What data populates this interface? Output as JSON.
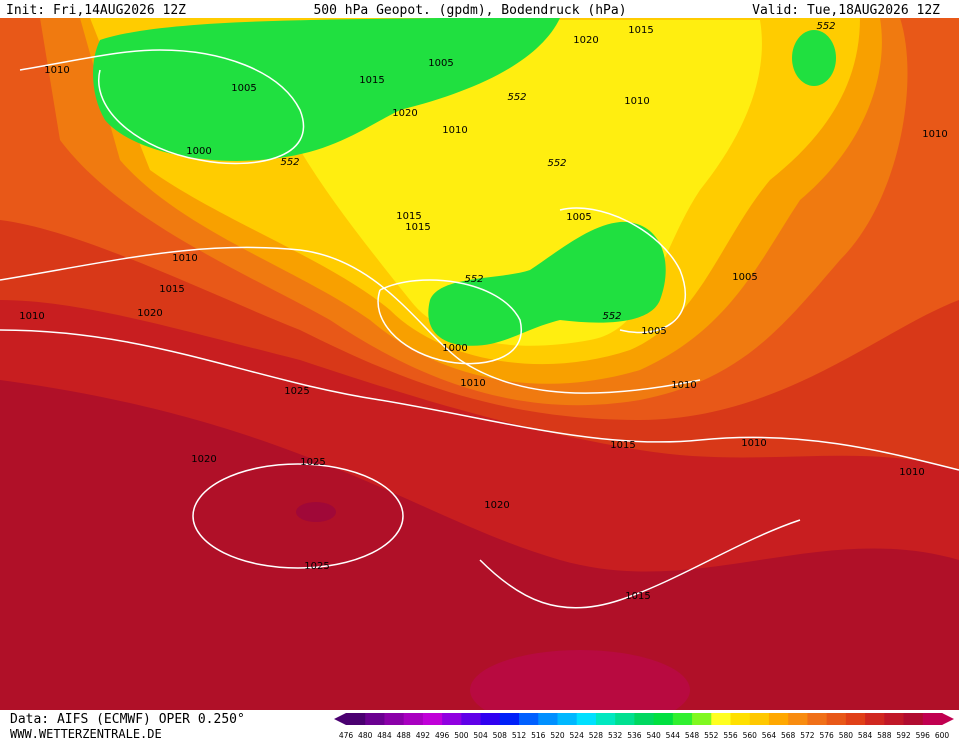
{
  "header": {
    "init": "Init: Fri,14AUG2026 12Z",
    "title": "500 hPa Geopot. (gpdm), Bodendruck (hPa)",
    "valid": "Valid: Tue,18AUG2026 12Z"
  },
  "isobar_labels": [
    "1010",
    "1005",
    "1000",
    "1005",
    "1015",
    "1020",
    "1015",
    "1020",
    "1010",
    "1010",
    "1010",
    "1015",
    "1015",
    "1005",
    "1010",
    "1015",
    "1005",
    "1010",
    "1020",
    "1005",
    "1000",
    "1010",
    "1010",
    "1025",
    "1015",
    "1010",
    "1020",
    "1025",
    "1010",
    "1020",
    "1025",
    "1015"
  ],
  "height_labels": [
    "552",
    "552",
    "552",
    "552",
    "552",
    "552"
  ],
  "footer": {
    "data": "Data: AIFS (ECMWF) OPER 0.250°",
    "site": "WWW.WETTERZENTRALE.DE"
  },
  "colorbar": {
    "labels": [
      "476",
      "480",
      "484",
      "488",
      "492",
      "496",
      "500",
      "504",
      "508",
      "512",
      "516",
      "520",
      "524",
      "528",
      "532",
      "536",
      "540",
      "544",
      "548",
      "552",
      "556",
      "560",
      "564",
      "568",
      "572",
      "576",
      "580",
      "584",
      "588",
      "592",
      "596",
      "600"
    ],
    "colors": [
      "#4a0070",
      "#6a0090",
      "#8a00a8",
      "#a800c0",
      "#c000d8",
      "#9000e0",
      "#6000e8",
      "#3000f0",
      "#0020f8",
      "#0060ff",
      "#0090ff",
      "#00b8ff",
      "#00e0ff",
      "#00e8c0",
      "#00e090",
      "#00d860",
      "#00e040",
      "#30f030",
      "#80f820",
      "#ffff20",
      "#ffe000",
      "#ffc800",
      "#ffa800",
      "#f88c10",
      "#f07018",
      "#e85818",
      "#e04018",
      "#d02820",
      "#c01828",
      "#b00c30",
      "#c00050"
    ]
  }
}
